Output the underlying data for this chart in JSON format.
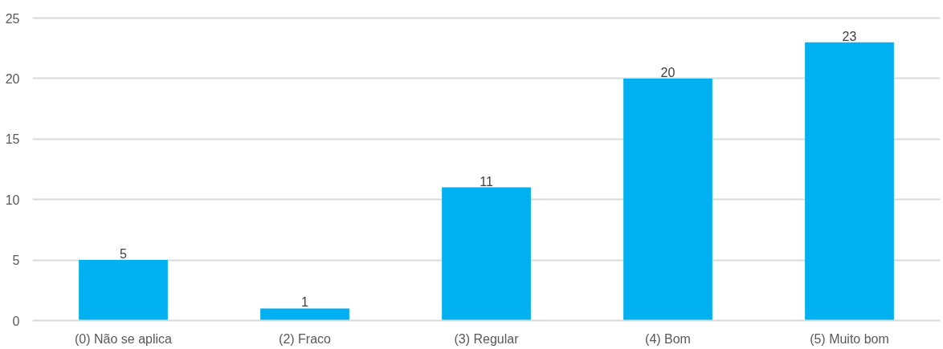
{
  "chart_data": {
    "type": "bar",
    "categories": [
      "(0) Não se aplica",
      "(2) Fraco",
      "(3) Regular",
      "(4) Bom",
      "(5) Muito bom"
    ],
    "values": [
      5,
      1,
      11,
      20,
      23
    ],
    "color": "#00b0f0",
    "ylim": [
      0,
      25
    ],
    "yticks": [
      0,
      5,
      10,
      15,
      20,
      25
    ],
    "grid": "y",
    "data_labels": true
  }
}
